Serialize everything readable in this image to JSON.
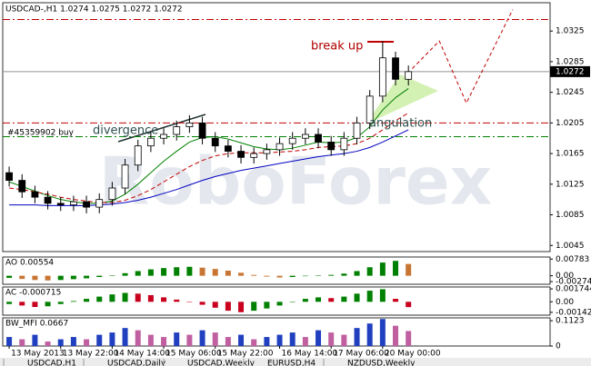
{
  "chart_data": [
    {
      "type": "candlestick",
      "title": "USDCAD-,H1  1.0274 1.0275 1.0272 1.0272",
      "watermark": "RoboForex",
      "x": [
        0,
        1,
        2,
        3,
        4,
        5,
        6,
        7,
        8,
        9,
        10,
        11,
        12,
        13,
        14,
        15,
        16,
        17,
        18,
        19,
        20,
        21,
        22,
        23,
        24,
        25,
        26,
        27,
        28,
        29,
        30,
        31
      ],
      "xlim": [
        -0.5,
        42
      ],
      "xticks": [
        {
          "value": 0,
          "label": "13 May 2013"
        },
        {
          "value": 4,
          "label": "13 May 22:00"
        },
        {
          "value": 8,
          "label": "14 May 14:00"
        },
        {
          "value": 12,
          "label": "15 May 06:00"
        },
        {
          "value": 16,
          "label": "15 May 22:00"
        },
        {
          "value": 21,
          "label": "16 May 14:00"
        },
        {
          "value": 25,
          "label": "17 May 06:00"
        },
        {
          "value": 29,
          "label": "20 May 00:00"
        }
      ],
      "open": [
        1.014,
        1.013,
        1.0115,
        1.0108,
        1.01,
        1.0098,
        1.0102,
        1.0095,
        1.0105,
        1.012,
        1.015,
        1.0175,
        1.0185,
        1.019,
        1.02,
        1.0205,
        1.0185,
        1.0175,
        1.0168,
        1.016,
        1.0165,
        1.017,
        1.0178,
        1.0185,
        1.019,
        1.018,
        1.017,
        1.0185,
        1.0205,
        1.024,
        1.029,
        1.0262
      ],
      "high": [
        1.0148,
        1.0138,
        1.0123,
        1.0116,
        1.0108,
        1.011,
        1.011,
        1.0113,
        1.0128,
        1.0158,
        1.0183,
        1.0193,
        1.0198,
        1.0208,
        1.0215,
        1.0213,
        1.0193,
        1.0183,
        1.0176,
        1.0173,
        1.0178,
        1.0186,
        1.0193,
        1.0198,
        1.0198,
        1.0188,
        1.0193,
        1.0213,
        1.0248,
        1.0312,
        1.0298,
        1.028
      ],
      "low": [
        1.0122,
        1.0107,
        1.01,
        1.0092,
        1.009,
        1.009,
        1.0087,
        1.0087,
        1.0097,
        1.0112,
        1.0142,
        1.0167,
        1.0177,
        1.0182,
        1.0192,
        1.0177,
        1.0167,
        1.016,
        1.0152,
        1.0152,
        1.0157,
        1.0162,
        1.017,
        1.0177,
        1.0172,
        1.0162,
        1.0162,
        1.0177,
        1.0197,
        1.0232,
        1.0254,
        1.0254
      ],
      "close": [
        1.013,
        1.0115,
        1.0108,
        1.01,
        1.0098,
        1.0102,
        1.0095,
        1.0105,
        1.012,
        1.015,
        1.0175,
        1.0185,
        1.019,
        1.02,
        1.0205,
        1.0185,
        1.0175,
        1.0168,
        1.016,
        1.0165,
        1.017,
        1.0178,
        1.0185,
        1.019,
        1.018,
        1.017,
        1.0185,
        1.0205,
        1.024,
        1.029,
        1.0262,
        1.0272
      ],
      "series": [
        {
          "color": "#008000",
          "dash": false,
          "values": [
            1.0128,
            1.0122,
            1.0116,
            1.011,
            1.0105,
            1.0102,
            1.01,
            1.01,
            1.0103,
            1.0112,
            1.0125,
            1.014,
            1.0155,
            1.0168,
            1.018,
            1.0186,
            1.0187,
            1.0184,
            1.0179,
            1.0174,
            1.0171,
            1.017,
            1.0172,
            1.0176,
            1.018,
            1.0179,
            1.018,
            1.0186,
            1.02,
            1.0222,
            1.0238,
            1.025
          ]
        },
        {
          "color": "#c00000",
          "dash": true,
          "values": [
            1.012,
            1.0118,
            1.0115,
            1.0112,
            1.0108,
            1.0105,
            1.0103,
            1.0101,
            1.0101,
            1.0104,
            1.011,
            1.0118,
            1.0128,
            1.0138,
            1.0148,
            1.0156,
            1.0162,
            1.0165,
            1.0166,
            1.0166,
            1.0166,
            1.0167,
            1.0168,
            1.017,
            1.0173,
            1.0174,
            1.0175,
            1.0178,
            1.0185,
            1.0196,
            1.0208,
            1.0218
          ]
        },
        {
          "color": "#0000c0",
          "dash": false,
          "values": [
            1.0098,
            1.0098,
            1.0098,
            1.0097,
            1.0097,
            1.0097,
            1.0097,
            1.0098,
            1.0099,
            1.0101,
            1.0104,
            1.0108,
            1.0113,
            1.0118,
            1.0124,
            1.013,
            1.0135,
            1.0139,
            1.0143,
            1.0146,
            1.0149,
            1.0152,
            1.0155,
            1.0158,
            1.0161,
            1.0163,
            1.0165,
            1.0168,
            1.0173,
            1.018,
            1.0188,
            1.0196
          ]
        }
      ],
      "forecast": {
        "color": "#c00000",
        "x": [
          31.3,
          33.4,
          35.5,
          39.1
        ],
        "y": [
          1.0276,
          1.0312,
          1.0231,
          1.0353
        ]
      },
      "levels": [
        {
          "value": 1.034,
          "color": "#c00000"
        },
        {
          "value": 1.0205,
          "color": "#c00000"
        },
        {
          "value": 1.0187,
          "color": "#008000"
        }
      ],
      "last_price": 1.0272,
      "ylim": [
        1.0037,
        1.0362
      ],
      "yticks": [
        1.0325,
        1.0285,
        1.0245,
        1.0205,
        1.0165,
        1.0125,
        1.0085,
        1.0045
      ],
      "annotations": {
        "break": "break up",
        "divergence": "divergence",
        "angulation": "angulation",
        "order": "#45359902 buy"
      }
    },
    {
      "type": "histogram",
      "title": "AO 0.00554",
      "up_color": "#008000",
      "down_color": "#c87533",
      "values": [
        -0.001,
        -0.0015,
        -0.002,
        -0.0022,
        -0.002,
        -0.0016,
        -0.0012,
        -0.0006,
        0.0002,
        0.0012,
        0.0022,
        0.003,
        0.0036,
        0.004,
        0.0042,
        0.0038,
        0.0032,
        0.0024,
        0.0014,
        0.0004,
        -0.0004,
        -0.0008,
        -0.0006,
        -0.0002,
        0.0002,
        0.0004,
        0.001,
        0.0022,
        0.004,
        0.0062,
        0.007,
        0.00554
      ],
      "ylim": [
        -0.004,
        0.0088
      ],
      "yticks": [
        0.00783,
        {
          "value": 0,
          "label": "0.00"
        },
        -0.00274
      ]
    },
    {
      "type": "histogram",
      "title": "AC -0.000715",
      "up_color": "#008000",
      "down_color": "#c8001e",
      "values": [
        -0.0003,
        -0.0005,
        -0.0007,
        -0.0006,
        -0.0003,
        0.0001,
        0.0004,
        0.0007,
        0.001,
        0.0012,
        0.0011,
        0.0009,
        0.0006,
        0.0003,
        0.0,
        -0.0004,
        -0.0008,
        -0.0012,
        -0.0014,
        -0.0012,
        -0.0009,
        -0.0005,
        0.0,
        0.0004,
        0.0006,
        0.0005,
        0.0007,
        0.0011,
        0.0015,
        0.0017,
        0.0004,
        -0.000715
      ],
      "ylim": [
        -0.0018,
        0.002
      ],
      "yticks": [
        0.001744,
        {
          "value": 0,
          "label": "0.00"
        },
        -0.001425
      ]
    },
    {
      "type": "histogram",
      "title": "BW_MFI 0.0667",
      "up_color": "#2040c0",
      "down_color": "#c060a0",
      "values": [
        0.04,
        0.03,
        0.05,
        0.02,
        0.03,
        0.04,
        0.03,
        0.05,
        0.06,
        0.08,
        0.07,
        0.05,
        0.04,
        0.06,
        0.05,
        0.07,
        0.06,
        0.04,
        0.05,
        0.03,
        0.04,
        0.05,
        0.06,
        0.04,
        0.07,
        0.06,
        0.05,
        0.08,
        0.1,
        0.12,
        0.09,
        0.0667
      ],
      "ylim": [
        0,
        0.125
      ],
      "yticks": [
        0.1123,
        0
      ]
    }
  ],
  "tabs": [
    "USDCAD,H1",
    "USDCAD,Daily",
    "USDCAD,Weekly",
    "EURUSD,H4",
    "NZDUSD,Weekly"
  ]
}
